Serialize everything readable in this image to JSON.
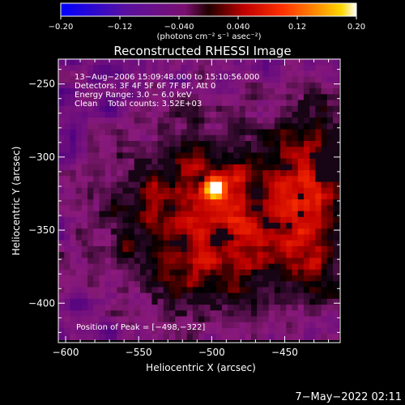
{
  "chart_data": {
    "type": "heatmap",
    "title": "Reconstructed RHESSI Image",
    "xlabel": "Heliocentric X (arcsec)",
    "ylabel": "Heliocentric Y (arcsec)",
    "xlim": [
      -605,
      -412
    ],
    "ylim": [
      -427,
      -233
    ],
    "x_ticks": [
      -600,
      -550,
      -500,
      -450
    ],
    "y_ticks": [
      -250,
      -300,
      -350,
      -400
    ],
    "x_tick_labels": [
      "−600",
      "−550",
      "−500",
      "−450"
    ],
    "y_tick_labels": [
      "−250",
      "−300",
      "−350",
      "−400"
    ],
    "colorbar": {
      "range": [
        -0.2,
        0.2
      ],
      "tick_values": [
        -0.2,
        -0.12,
        -0.04,
        0.04,
        0.12,
        0.2
      ],
      "tick_labels": [
        "−0.20",
        "−0.12",
        "−0.040",
        "0.040",
        "0.12",
        "0.20"
      ],
      "unit_label": "(photons cm⁻² s⁻¹ asec⁻²)"
    },
    "annotations": [
      "13−Aug−2006 15:09:48.000 to 15:10:56.000",
      "Detectors: 3F 4F 5F 6F 7F 8F, Att 0",
      "Energy Range: 3.0 − 6.0 keV",
      "Clean    Total counts: 3.52E+03"
    ],
    "peak_label": "Position of Peak = [−498,−322]",
    "peak": {
      "x": -498,
      "y": -322,
      "value": 0.2
    },
    "grid": false,
    "colormap": [
      "#0000ff",
      "#4b0082",
      "#8a1a7a",
      "#000000",
      "#c00000",
      "#ff3000",
      "#ff8800",
      "#ffd000",
      "#ffffff"
    ]
  },
  "footer": {
    "timestamp": "7−May−2022 02:11"
  }
}
